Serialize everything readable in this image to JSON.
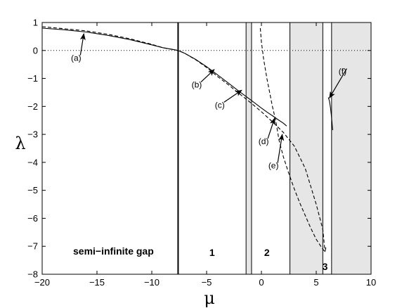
{
  "chart_data": {
    "type": "line",
    "xlabel": "μ",
    "ylabel": "λ",
    "xlim": [
      -20,
      10
    ],
    "ylim": [
      -8,
      1
    ],
    "xticks": [
      -20,
      -15,
      -10,
      -5,
      0,
      5,
      10
    ],
    "yticks": [
      1,
      0,
      -1,
      -2,
      -3,
      -4,
      -5,
      -6,
      -7,
      -8
    ],
    "zero_line": {
      "y": 0,
      "style": "dotted"
    },
    "vertical_line": {
      "x": -7.6
    },
    "bands": [
      {
        "x0": -1.4,
        "x1": -0.9
      },
      {
        "x0": 2.6,
        "x1": 5.6
      },
      {
        "x0": 6.4,
        "x1": 10
      }
    ],
    "region_labels": [
      {
        "text": "semi−infinite gap",
        "x": -13.5,
        "y": -7.3
      },
      {
        "text": "1",
        "x": -4.5,
        "y": -7.35
      },
      {
        "text": "2",
        "x": 0.5,
        "y": -7.35
      },
      {
        "text": "3",
        "x": 5.8,
        "y": -7.85
      }
    ],
    "series": [
      {
        "style": "solid",
        "x": [
          -20,
          -18,
          -16,
          -14,
          -12,
          -10,
          -9,
          -8,
          -7.6,
          -7,
          -6,
          -5,
          -4,
          -3,
          -2,
          -1,
          0,
          0.5,
          1,
          1.5,
          2,
          2.3
        ],
        "y": [
          0.8,
          0.74,
          0.66,
          0.54,
          0.39,
          0.2,
          0.1,
          0.03,
          0.0,
          -0.1,
          -0.32,
          -0.58,
          -0.87,
          -1.17,
          -1.47,
          -1.76,
          -2.06,
          -2.2,
          -2.33,
          -2.47,
          -2.6,
          -2.7
        ]
      },
      {
        "style": "dashed",
        "x": [
          -20,
          -18,
          -16,
          -14,
          -12,
          -10,
          -9,
          -8,
          -7.6,
          -7,
          -6,
          -5,
          -4,
          -3,
          -2,
          -1,
          0,
          1,
          2,
          3,
          4,
          5,
          5.6,
          5.8
        ],
        "y": [
          0.85,
          0.78,
          0.7,
          0.58,
          0.42,
          0.22,
          0.1,
          0.03,
          0.0,
          -0.1,
          -0.33,
          -0.61,
          -0.93,
          -1.23,
          -1.55,
          -1.86,
          -2.19,
          -2.55,
          -2.93,
          -3.42,
          -4.22,
          -5.5,
          -6.4,
          -7.2
        ]
      },
      {
        "style": "dashed",
        "x": [
          -0.1,
          0.0,
          0.2,
          0.5,
          0.8,
          1.0,
          1.3,
          1.6,
          2.0,
          2.5,
          3.0,
          3.5,
          4.0,
          4.5,
          5.0,
          5.5,
          5.8,
          5.9
        ],
        "y": [
          0.8,
          0.3,
          -0.3,
          -1.0,
          -1.6,
          -2.0,
          -2.5,
          -3.2,
          -3.8,
          -4.4,
          -4.95,
          -5.45,
          -5.9,
          -6.35,
          -6.75,
          -7.05,
          -7.2,
          -7.0
        ]
      },
      {
        "style": "solid",
        "x": [
          6.1,
          6.2,
          6.3,
          6.4,
          6.5
        ],
        "y": [
          -1.68,
          -1.8,
          -2.05,
          -2.4,
          -2.85
        ]
      }
    ],
    "annotations": [
      {
        "text": "(a)",
        "text_x": -16.9,
        "text_y": -0.37,
        "arrow_x": -16.2,
        "arrow_y": 0.6
      },
      {
        "text": "(b)",
        "text_x": -5.9,
        "text_y": -1.33,
        "arrow_x": -4.3,
        "arrow_y": -0.68
      },
      {
        "text": "(c)",
        "text_x": -3.8,
        "text_y": -2.05,
        "arrow_x": -1.8,
        "arrow_y": -1.42
      },
      {
        "text": "(d)",
        "text_x": 0.2,
        "text_y": -3.35,
        "arrow_x": 1.2,
        "arrow_y": -2.42
      },
      {
        "text": "(e)",
        "text_x": 1.1,
        "text_y": -4.22,
        "arrow_x": 1.9,
        "arrow_y": -3.0
      },
      {
        "text": "(f)",
        "text_x": 7.4,
        "text_y": -0.85,
        "arrow_x": 6.2,
        "arrow_y": -1.7
      }
    ]
  }
}
